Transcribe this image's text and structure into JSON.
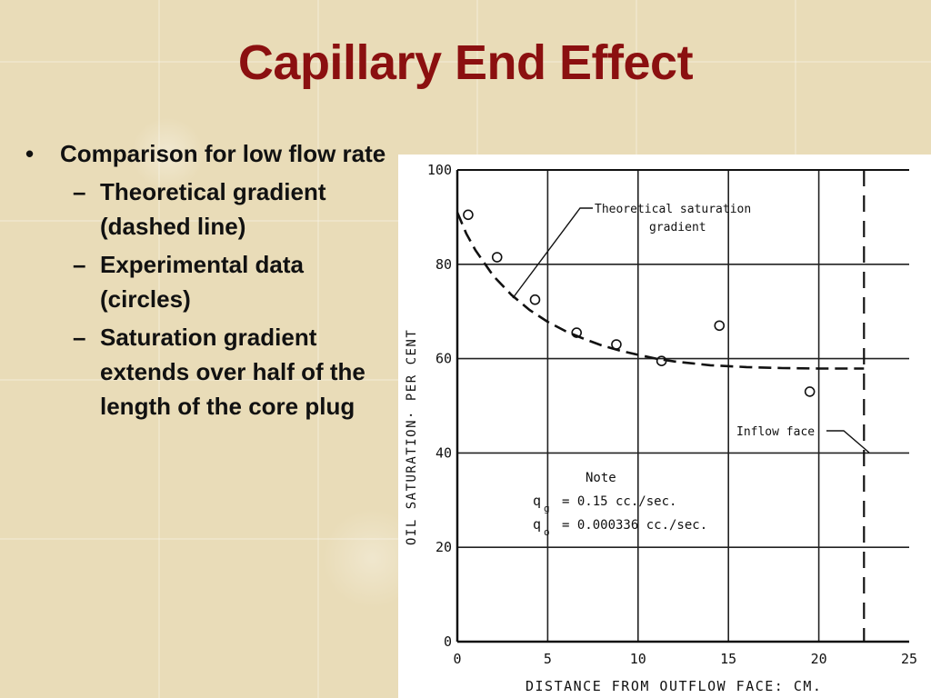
{
  "slide": {
    "title": "Capillary End Effect",
    "bullet_main": "Comparison for low flow rate",
    "sub_bullets": [
      "Theoretical gradient (dashed line)",
      "Experimental data (circles)",
      "Saturation gradient extends over half of the length of the core plug"
    ],
    "bullet_mark": "•",
    "sub_mark": "–"
  },
  "colors": {
    "title": "#8b1010",
    "background": "#e9dcb8"
  },
  "chart_data": {
    "type": "scatter",
    "xlabel": "DISTANCE  FROM  OUTFLOW  FACE:  CM.",
    "ylabel": "OIL  SATURATION·  PER  CENT",
    "xlim": [
      0,
      25
    ],
    "ylim": [
      0,
      100
    ],
    "x_ticks": [
      0,
      5,
      10,
      15,
      20,
      25
    ],
    "y_ticks": [
      0,
      20,
      40,
      60,
      80,
      100
    ],
    "grid": true,
    "series": [
      {
        "name": "Experimental data",
        "style": "circles",
        "x": [
          0.6,
          2.2,
          4.3,
          6.6,
          8.8,
          11.3,
          14.5,
          19.5
        ],
        "y": [
          90.5,
          81.5,
          72.5,
          65.5,
          63,
          59.5,
          67,
          53
        ]
      },
      {
        "name": "Theoretical saturation gradient",
        "style": "dashed",
        "x": [
          0,
          0.5,
          1,
          2,
          3,
          4,
          5,
          6,
          7,
          8,
          9,
          10,
          11,
          12,
          14,
          16,
          18,
          20,
          22.5
        ],
        "y": [
          91,
          86.5,
          83,
          77.5,
          73.5,
          70.3,
          67.8,
          65.8,
          64.2,
          62.8,
          61.7,
          60.8,
          60,
          59.4,
          58.6,
          58.2,
          58,
          57.9,
          57.9
        ]
      }
    ],
    "inflow_face_x": 22.5,
    "annotations": {
      "curve_label_line1": "Theoretical  saturation",
      "curve_label_line2": "gradient",
      "inflow_label": "Inflow  face",
      "note_title": "Note",
      "qg_symbol": "q",
      "qg_sub": "g",
      "qg_value": "= 0.15  cc./sec.",
      "qo_symbol": "q",
      "qo_sub": "o",
      "qo_value": "= 0.000336  cc./sec."
    }
  }
}
